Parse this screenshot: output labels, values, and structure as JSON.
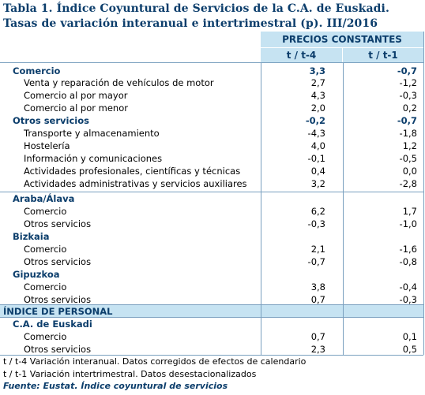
{
  "title": {
    "line1": "Tabla 1. Índice Coyuntural de Servicios de la C.A. de Euskadi.",
    "line2": "Tasas de variación interanual e intertrimestral (p).  III/2016"
  },
  "header": {
    "group": "PRECIOS CONSTANTES",
    "col1": "t / t-4",
    "col2": "t / t-1"
  },
  "rows": [
    {
      "label": "Comercio",
      "v1": "3,3",
      "v2": "-0,7",
      "style": "bold"
    },
    {
      "label": "Venta y reparación de vehículos de motor",
      "v1": "2,7",
      "v2": "-1,2",
      "style": "sub"
    },
    {
      "label": "Comercio al por mayor",
      "v1": "4,3",
      "v2": "-0,3",
      "style": "sub"
    },
    {
      "label": "Comercio al por menor",
      "v1": "2,0",
      "v2": "0,2",
      "style": "sub"
    },
    {
      "label": "Otros servicios",
      "v1": "-0,2",
      "v2": "-0,7",
      "style": "bold"
    },
    {
      "label": "Transporte y almacenamiento",
      "v1": "-4,3",
      "v2": "-1,8",
      "style": "sub"
    },
    {
      "label": "Hostelería",
      "v1": "4,0",
      "v2": "1,2",
      "style": "sub"
    },
    {
      "label": "Información y comunicaciones",
      "v1": "-0,1",
      "v2": "-0,5",
      "style": "sub"
    },
    {
      "label": "Actividades profesionales, científicas y técnicas",
      "v1": "0,4",
      "v2": "0,0",
      "style": "sub"
    },
    {
      "label": "Actividades administrativas y servicios auxiliares",
      "v1": "3,2",
      "v2": "-2,8",
      "style": "sub"
    },
    {
      "label": "Araba/Álava",
      "v1": "",
      "v2": "",
      "style": "bold"
    },
    {
      "label": "Comercio",
      "v1": "6,2",
      "v2": "1,7",
      "style": "sub"
    },
    {
      "label": "Otros servicios",
      "v1": "-0,3",
      "v2": "-1,0",
      "style": "sub"
    },
    {
      "label": "Bizkaia",
      "v1": "",
      "v2": "",
      "style": "bold"
    },
    {
      "label": "Comercio",
      "v1": "2,1",
      "v2": "-1,6",
      "style": "sub"
    },
    {
      "label": "Otros servicios",
      "v1": "-0,7",
      "v2": "-0,8",
      "style": "sub"
    },
    {
      "label": "Gipuzkoa",
      "v1": "",
      "v2": "",
      "style": "bold"
    },
    {
      "label": "Comercio",
      "v1": "3,8",
      "v2": "-0,4",
      "style": "sub"
    },
    {
      "label": "Otros servicios",
      "v1": "0,7",
      "v2": "-0,3",
      "style": "sub"
    },
    {
      "label": "ÍNDICE DE PERSONAL",
      "v1": "",
      "v2": "",
      "style": "bold top"
    },
    {
      "label": "C.A. de Euskadi",
      "v1": "",
      "v2": "",
      "style": "bold"
    },
    {
      "label": "Comercio",
      "v1": "0,7",
      "v2": "0,1",
      "style": "sub"
    },
    {
      "label": "Otros servicios",
      "v1": "2,3",
      "v2": "0,5",
      "style": "sub"
    }
  ],
  "notes": {
    "note1": "t / t-4 Variación interanual. Datos corregidos de efectos de calendario",
    "note2": "t / t-1 Variación intertrimestral. Datos desestacionalizados",
    "source": "Fuente: Eustat. Índice coyuntural de servicios"
  }
}
